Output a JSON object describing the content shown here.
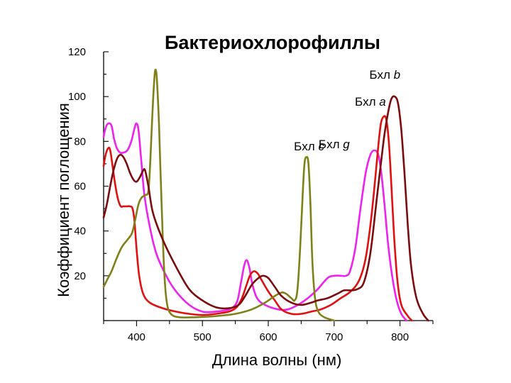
{
  "chart_data": {
    "type": "line",
    "title": "Бактериохлорофиллы",
    "xlabel": "Длина волны (нм)",
    "ylabel": "Коэффициент поглощения",
    "xlim": [
      350,
      850
    ],
    "ylim": [
      0,
      120
    ],
    "x_ticks": [
      400,
      500,
      600,
      700,
      800
    ],
    "y_ticks": [
      20,
      40,
      60,
      80,
      100,
      120
    ],
    "grid": false,
    "series": [
      {
        "name": "Бхл b",
        "color": "#7a0c0c",
        "points": [
          [
            350,
            46
          ],
          [
            355,
            52
          ],
          [
            360,
            60
          ],
          [
            365,
            67
          ],
          [
            370,
            72
          ],
          [
            375,
            74
          ],
          [
            380,
            73
          ],
          [
            385,
            70
          ],
          [
            390,
            66
          ],
          [
            395,
            63
          ],
          [
            400,
            62
          ],
          [
            405,
            64
          ],
          [
            410,
            67
          ],
          [
            413,
            67
          ],
          [
            418,
            60
          ],
          [
            425,
            48
          ],
          [
            440,
            36
          ],
          [
            460,
            24
          ],
          [
            480,
            14
          ],
          [
            500,
            9
          ],
          [
            520,
            6
          ],
          [
            540,
            5.5
          ],
          [
            555,
            7
          ],
          [
            565,
            11
          ],
          [
            575,
            16
          ],
          [
            585,
            19
          ],
          [
            592,
            20
          ],
          [
            600,
            19
          ],
          [
            610,
            15
          ],
          [
            620,
            11
          ],
          [
            635,
            8
          ],
          [
            650,
            7
          ],
          [
            665,
            8
          ],
          [
            675,
            9
          ],
          [
            690,
            10
          ],
          [
            705,
            12
          ],
          [
            715,
            13.5
          ],
          [
            725,
            13.5
          ],
          [
            735,
            14
          ],
          [
            745,
            17
          ],
          [
            755,
            30
          ],
          [
            765,
            55
          ],
          [
            775,
            80
          ],
          [
            782,
            93
          ],
          [
            787,
            99
          ],
          [
            792,
            100
          ],
          [
            797,
            97
          ],
          [
            802,
            85
          ],
          [
            807,
            65
          ],
          [
            812,
            42
          ],
          [
            817,
            24
          ],
          [
            825,
            10
          ],
          [
            835,
            3
          ],
          [
            843,
            0
          ]
        ]
      },
      {
        "name": "Бхл a",
        "color": "#e01010",
        "points": [
          [
            350,
            69
          ],
          [
            353,
            74
          ],
          [
            357,
            77
          ],
          [
            360,
            76
          ],
          [
            364,
            68
          ],
          [
            368,
            60
          ],
          [
            372,
            54
          ],
          [
            376,
            51
          ],
          [
            380,
            51
          ],
          [
            385,
            51
          ],
          [
            390,
            51
          ],
          [
            394,
            50
          ],
          [
            397,
            44
          ],
          [
            400,
            32
          ],
          [
            404,
            20
          ],
          [
            410,
            12
          ],
          [
            420,
            8
          ],
          [
            440,
            5.5
          ],
          [
            460,
            4
          ],
          [
            480,
            3
          ],
          [
            500,
            2.5
          ],
          [
            520,
            3
          ],
          [
            540,
            4
          ],
          [
            552,
            6
          ],
          [
            560,
            10
          ],
          [
            566,
            15
          ],
          [
            572,
            20
          ],
          [
            578,
            22
          ],
          [
            584,
            21
          ],
          [
            590,
            18
          ],
          [
            600,
            13
          ],
          [
            610,
            9
          ],
          [
            620,
            5
          ],
          [
            635,
            3
          ],
          [
            650,
            3
          ],
          [
            665,
            4
          ],
          [
            680,
            5
          ],
          [
            695,
            7
          ],
          [
            710,
            10
          ],
          [
            725,
            13
          ],
          [
            738,
            18
          ],
          [
            748,
            28
          ],
          [
            756,
            45
          ],
          [
            762,
            62
          ],
          [
            767,
            78
          ],
          [
            771,
            88
          ],
          [
            775,
            91
          ],
          [
            779,
            90
          ],
          [
            783,
            80
          ],
          [
            787,
            60
          ],
          [
            791,
            38
          ],
          [
            796,
            18
          ],
          [
            802,
            7
          ],
          [
            812,
            2
          ],
          [
            818,
            0
          ]
        ]
      },
      {
        "name": "Бхл g",
        "color": "#ee22ee",
        "points": [
          [
            350,
            82
          ],
          [
            353,
            86
          ],
          [
            357,
            88
          ],
          [
            362,
            87
          ],
          [
            366,
            81
          ],
          [
            370,
            77
          ],
          [
            375,
            75
          ],
          [
            380,
            75
          ],
          [
            386,
            76
          ],
          [
            392,
            80
          ],
          [
            397,
            86
          ],
          [
            400,
            88
          ],
          [
            403,
            85
          ],
          [
            407,
            72
          ],
          [
            412,
            56
          ],
          [
            420,
            42
          ],
          [
            430,
            30
          ],
          [
            445,
            20
          ],
          [
            460,
            13
          ],
          [
            480,
            7
          ],
          [
            500,
            4
          ],
          [
            520,
            4
          ],
          [
            540,
            5
          ],
          [
            552,
            8
          ],
          [
            558,
            16
          ],
          [
            563,
            24
          ],
          [
            567,
            27
          ],
          [
            571,
            24
          ],
          [
            576,
            16
          ],
          [
            583,
            10
          ],
          [
            595,
            7
          ],
          [
            615,
            5
          ],
          [
            630,
            5
          ],
          [
            645,
            7
          ],
          [
            660,
            10
          ],
          [
            675,
            14
          ],
          [
            690,
            19
          ],
          [
            700,
            20
          ],
          [
            710,
            20
          ],
          [
            718,
            20
          ],
          [
            724,
            22
          ],
          [
            732,
            32
          ],
          [
            740,
            50
          ],
          [
            748,
            66
          ],
          [
            755,
            74
          ],
          [
            761,
            76
          ],
          [
            767,
            74
          ],
          [
            772,
            65
          ],
          [
            777,
            50
          ],
          [
            782,
            34
          ],
          [
            788,
            20
          ],
          [
            795,
            9
          ],
          [
            802,
            3
          ],
          [
            810,
            0
          ]
        ]
      },
      {
        "name": "Бхл c",
        "color": "#808018",
        "points": [
          [
            350,
            15
          ],
          [
            355,
            18
          ],
          [
            362,
            22
          ],
          [
            370,
            28
          ],
          [
            378,
            33
          ],
          [
            386,
            36
          ],
          [
            393,
            39
          ],
          [
            398,
            45
          ],
          [
            403,
            52
          ],
          [
            408,
            55
          ],
          [
            413,
            56
          ],
          [
            418,
            58
          ],
          [
            421,
            72
          ],
          [
            424,
            92
          ],
          [
            427,
            108
          ],
          [
            429,
            112
          ],
          [
            431,
            107
          ],
          [
            434,
            88
          ],
          [
            438,
            52
          ],
          [
            442,
            22
          ],
          [
            446,
            8
          ],
          [
            452,
            3
          ],
          [
            465,
            1.5
          ],
          [
            490,
            1.5
          ],
          [
            520,
            2
          ],
          [
            550,
            3
          ],
          [
            575,
            5
          ],
          [
            595,
            8
          ],
          [
            610,
            11
          ],
          [
            620,
            12.5
          ],
          [
            627,
            12
          ],
          [
            635,
            10
          ],
          [
            640,
            9
          ],
          [
            644,
            13
          ],
          [
            648,
            30
          ],
          [
            652,
            55
          ],
          [
            655,
            70
          ],
          [
            658,
            73
          ],
          [
            661,
            70
          ],
          [
            664,
            52
          ],
          [
            667,
            26
          ],
          [
            671,
            10
          ],
          [
            676,
            4
          ],
          [
            685,
            1.5
          ],
          [
            700,
            0
          ]
        ]
      }
    ],
    "labels": [
      {
        "text": "Бхл b",
        "series": "Бхл b"
      },
      {
        "text": "Бхл a",
        "series": "Бхл a"
      },
      {
        "text": "Бхл c",
        "series": "Бхл c"
      },
      {
        "text": "Бхл g",
        "series": "Бхл g"
      }
    ]
  }
}
